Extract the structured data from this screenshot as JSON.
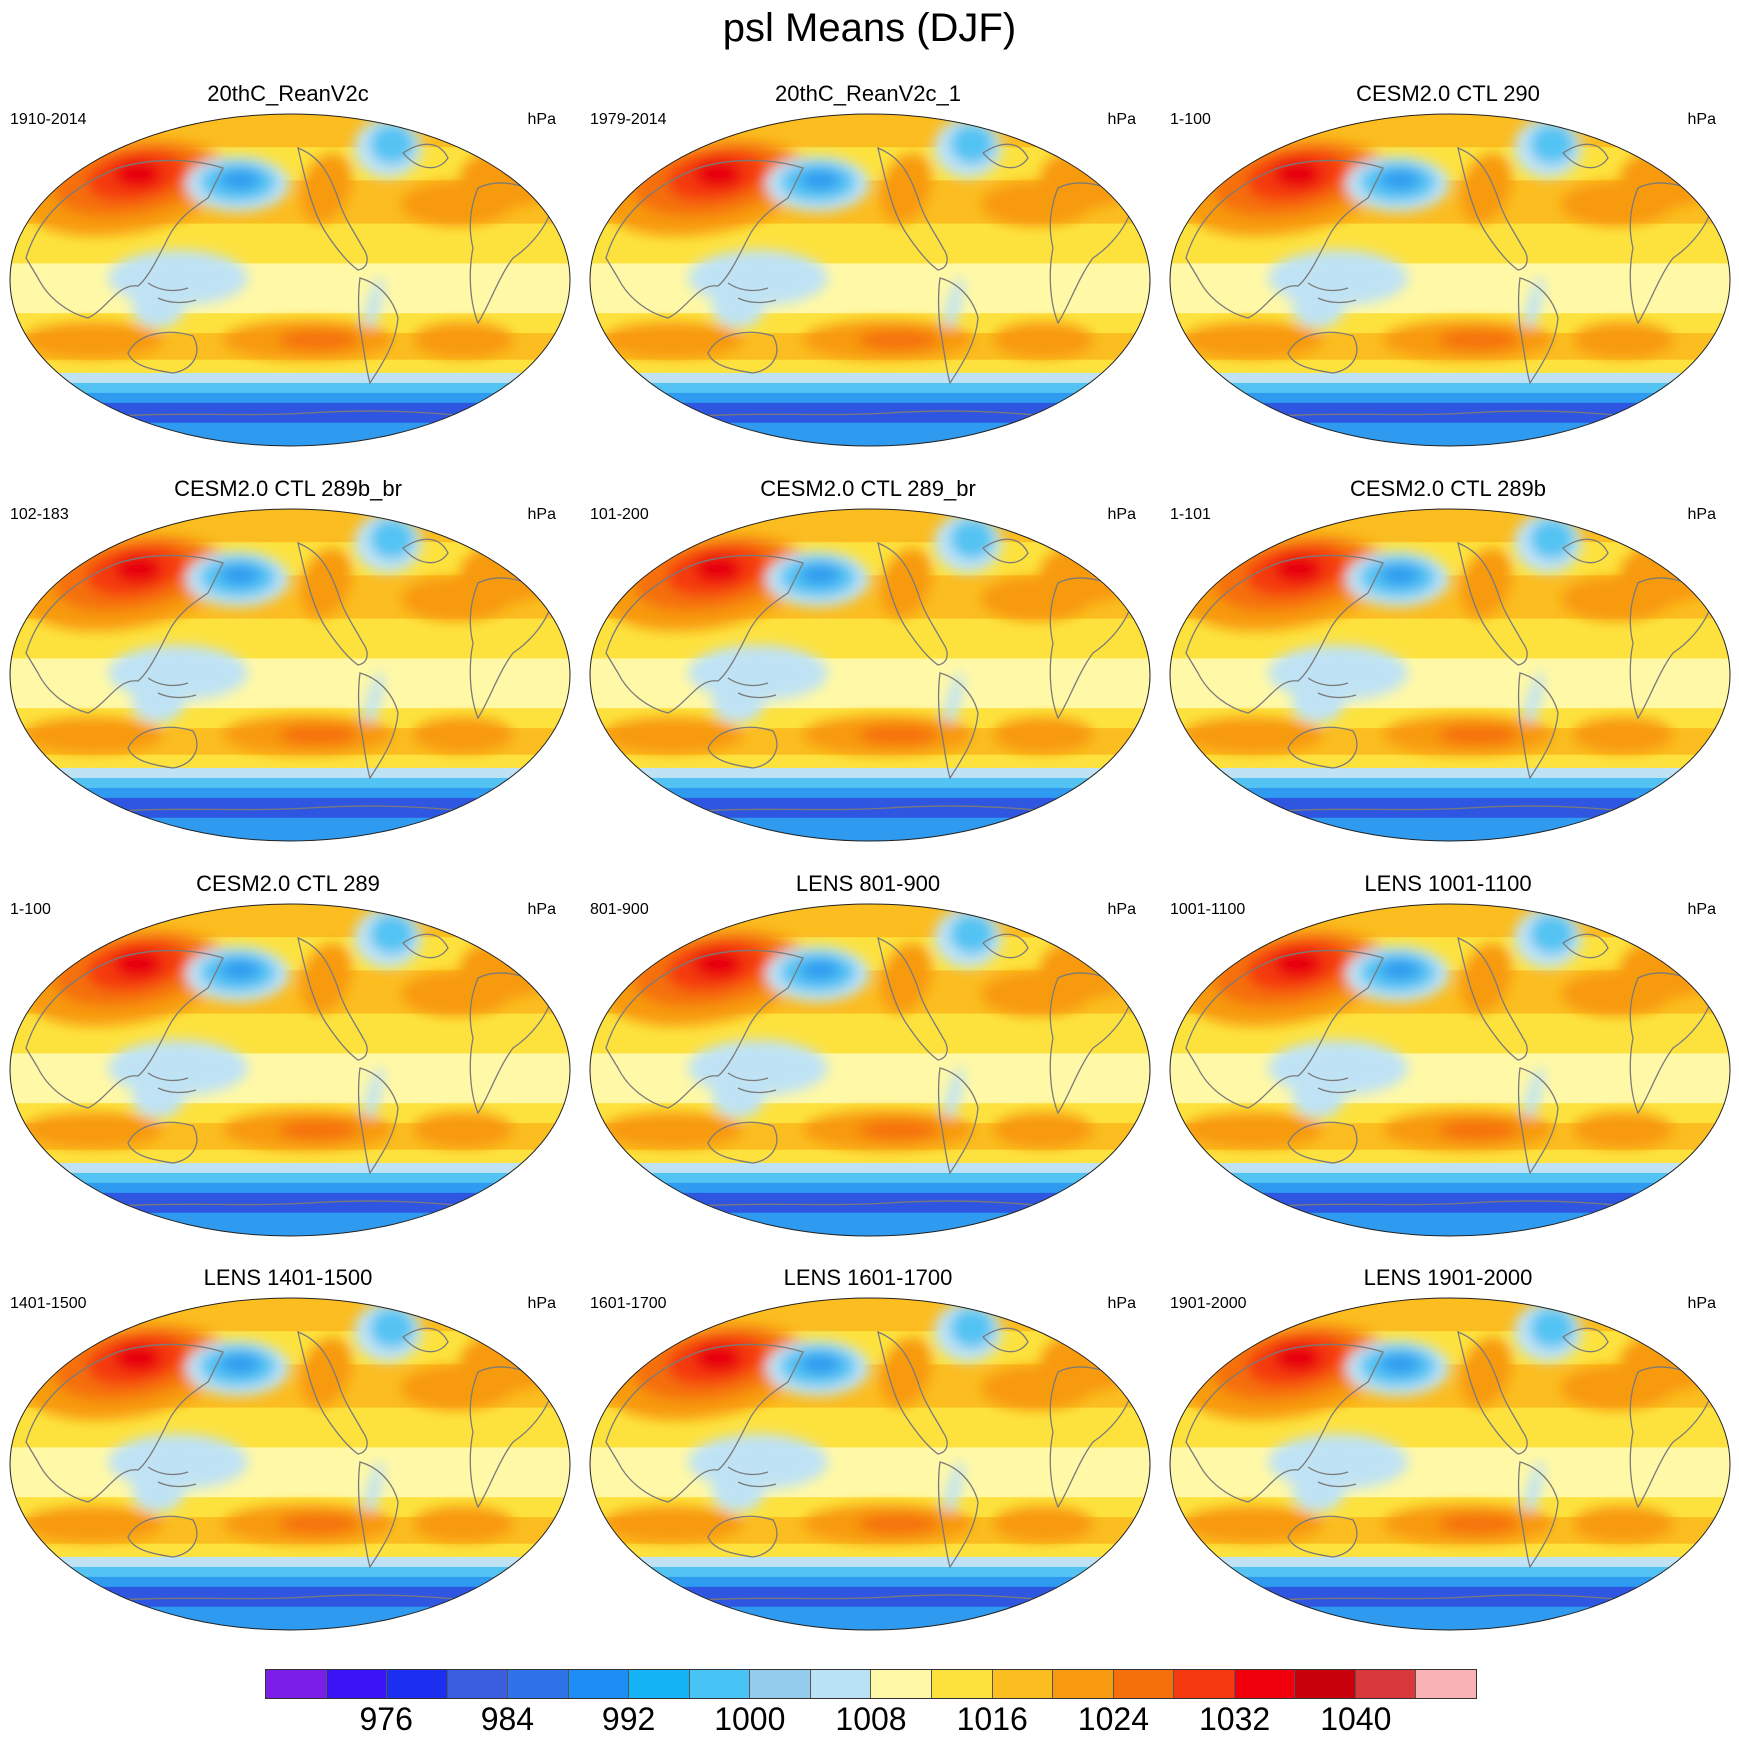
{
  "title": "psl Means (DJF)",
  "panels": [
    {
      "title": "20thC_ReanV2c",
      "years": "1910-2014",
      "units": "hPa"
    },
    {
      "title": "20thC_ReanV2c_1",
      "years": "1979-2014",
      "units": "hPa"
    },
    {
      "title": "CESM2.0 CTL 290",
      "years": "1-100",
      "units": "hPa"
    },
    {
      "title": "CESM2.0 CTL 289b_br",
      "years": "102-183",
      "units": "hPa"
    },
    {
      "title": "CESM2.0 CTL 289_br",
      "years": "101-200",
      "units": "hPa"
    },
    {
      "title": "CESM2.0 CTL 289b",
      "years": "1-101",
      "units": "hPa"
    },
    {
      "title": "CESM2.0 CTL 289",
      "years": "1-100",
      "units": "hPa"
    },
    {
      "title": "LENS 801-900",
      "years": "801-900",
      "units": "hPa"
    },
    {
      "title": "LENS 1001-1100",
      "years": "1001-1100",
      "units": "hPa"
    },
    {
      "title": "LENS 1401-1500",
      "years": "1401-1500",
      "units": "hPa"
    },
    {
      "title": "LENS 1601-1700",
      "years": "1601-1700",
      "units": "hPa"
    },
    {
      "title": "LENS 1901-2000",
      "years": "1901-2000",
      "units": "hPa"
    }
  ],
  "colorbar": {
    "colors": [
      "#7b1fe8",
      "#3b14f5",
      "#1a2ff0",
      "#3b5ee0",
      "#2f73e8",
      "#1c8ef5",
      "#14b3f5",
      "#47c3f5",
      "#93cdeb",
      "#b9e2f5",
      "#fff8a6",
      "#fde23e",
      "#fbbd20",
      "#f89a10",
      "#f56f0a",
      "#f53a10",
      "#f0000c",
      "#c8000c",
      "#d8383a",
      "#f8b4b4"
    ],
    "labels": [
      "976",
      "984",
      "992",
      "1000",
      "1008",
      "1016",
      "1024",
      "1032",
      "1040"
    ]
  },
  "palette": {
    "deep_blue": "#2f56e0",
    "blue": "#2f9bf0",
    "light_blue": "#53c3f3",
    "pale_blue": "#bfe3f5",
    "pale_yellow": "#fff8a6",
    "yellow": "#fde23e",
    "light_orange": "#fbbd20",
    "orange": "#f89a10",
    "dark_orange": "#f56f0a",
    "red": "#f53a10",
    "deep_red": "#e8000c",
    "coast": "#7a7a7a"
  }
}
